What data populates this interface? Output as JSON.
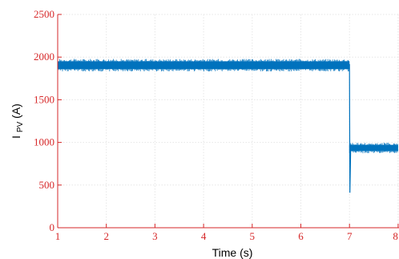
{
  "chart_data": {
    "type": "line",
    "title": "",
    "xlabel": "Time (s)",
    "ylabel": {
      "main": "I",
      "subscript": "PV",
      "unit": " (A)"
    },
    "xlim": [
      1,
      8
    ],
    "ylim": [
      0,
      2500
    ],
    "x_ticks": [
      "1",
      "2",
      "3",
      "4",
      "5",
      "6",
      "7",
      "8"
    ],
    "y_ticks": [
      "0",
      "500",
      "1000",
      "1500",
      "2000",
      "2500"
    ],
    "grid": true,
    "legend": "none",
    "series": [
      {
        "color": "#0072BD",
        "segments": [
          {
            "x_start": 1.0,
            "x_end": 7.0,
            "mean": 1910,
            "band_low": 1860,
            "band_high": 1950
          },
          {
            "x_start": 7.0,
            "x_end": 8.0,
            "mean": 935,
            "band_low": 900,
            "band_high": 970
          }
        ],
        "transient": {
          "x": 7.0,
          "from": 1920,
          "min": 410,
          "settle": 935
        }
      }
    ],
    "colors": {
      "series": "#0072BD",
      "tick_labels": "#D62728",
      "axes": "#D62728",
      "grid": "#E6E6E6"
    }
  }
}
